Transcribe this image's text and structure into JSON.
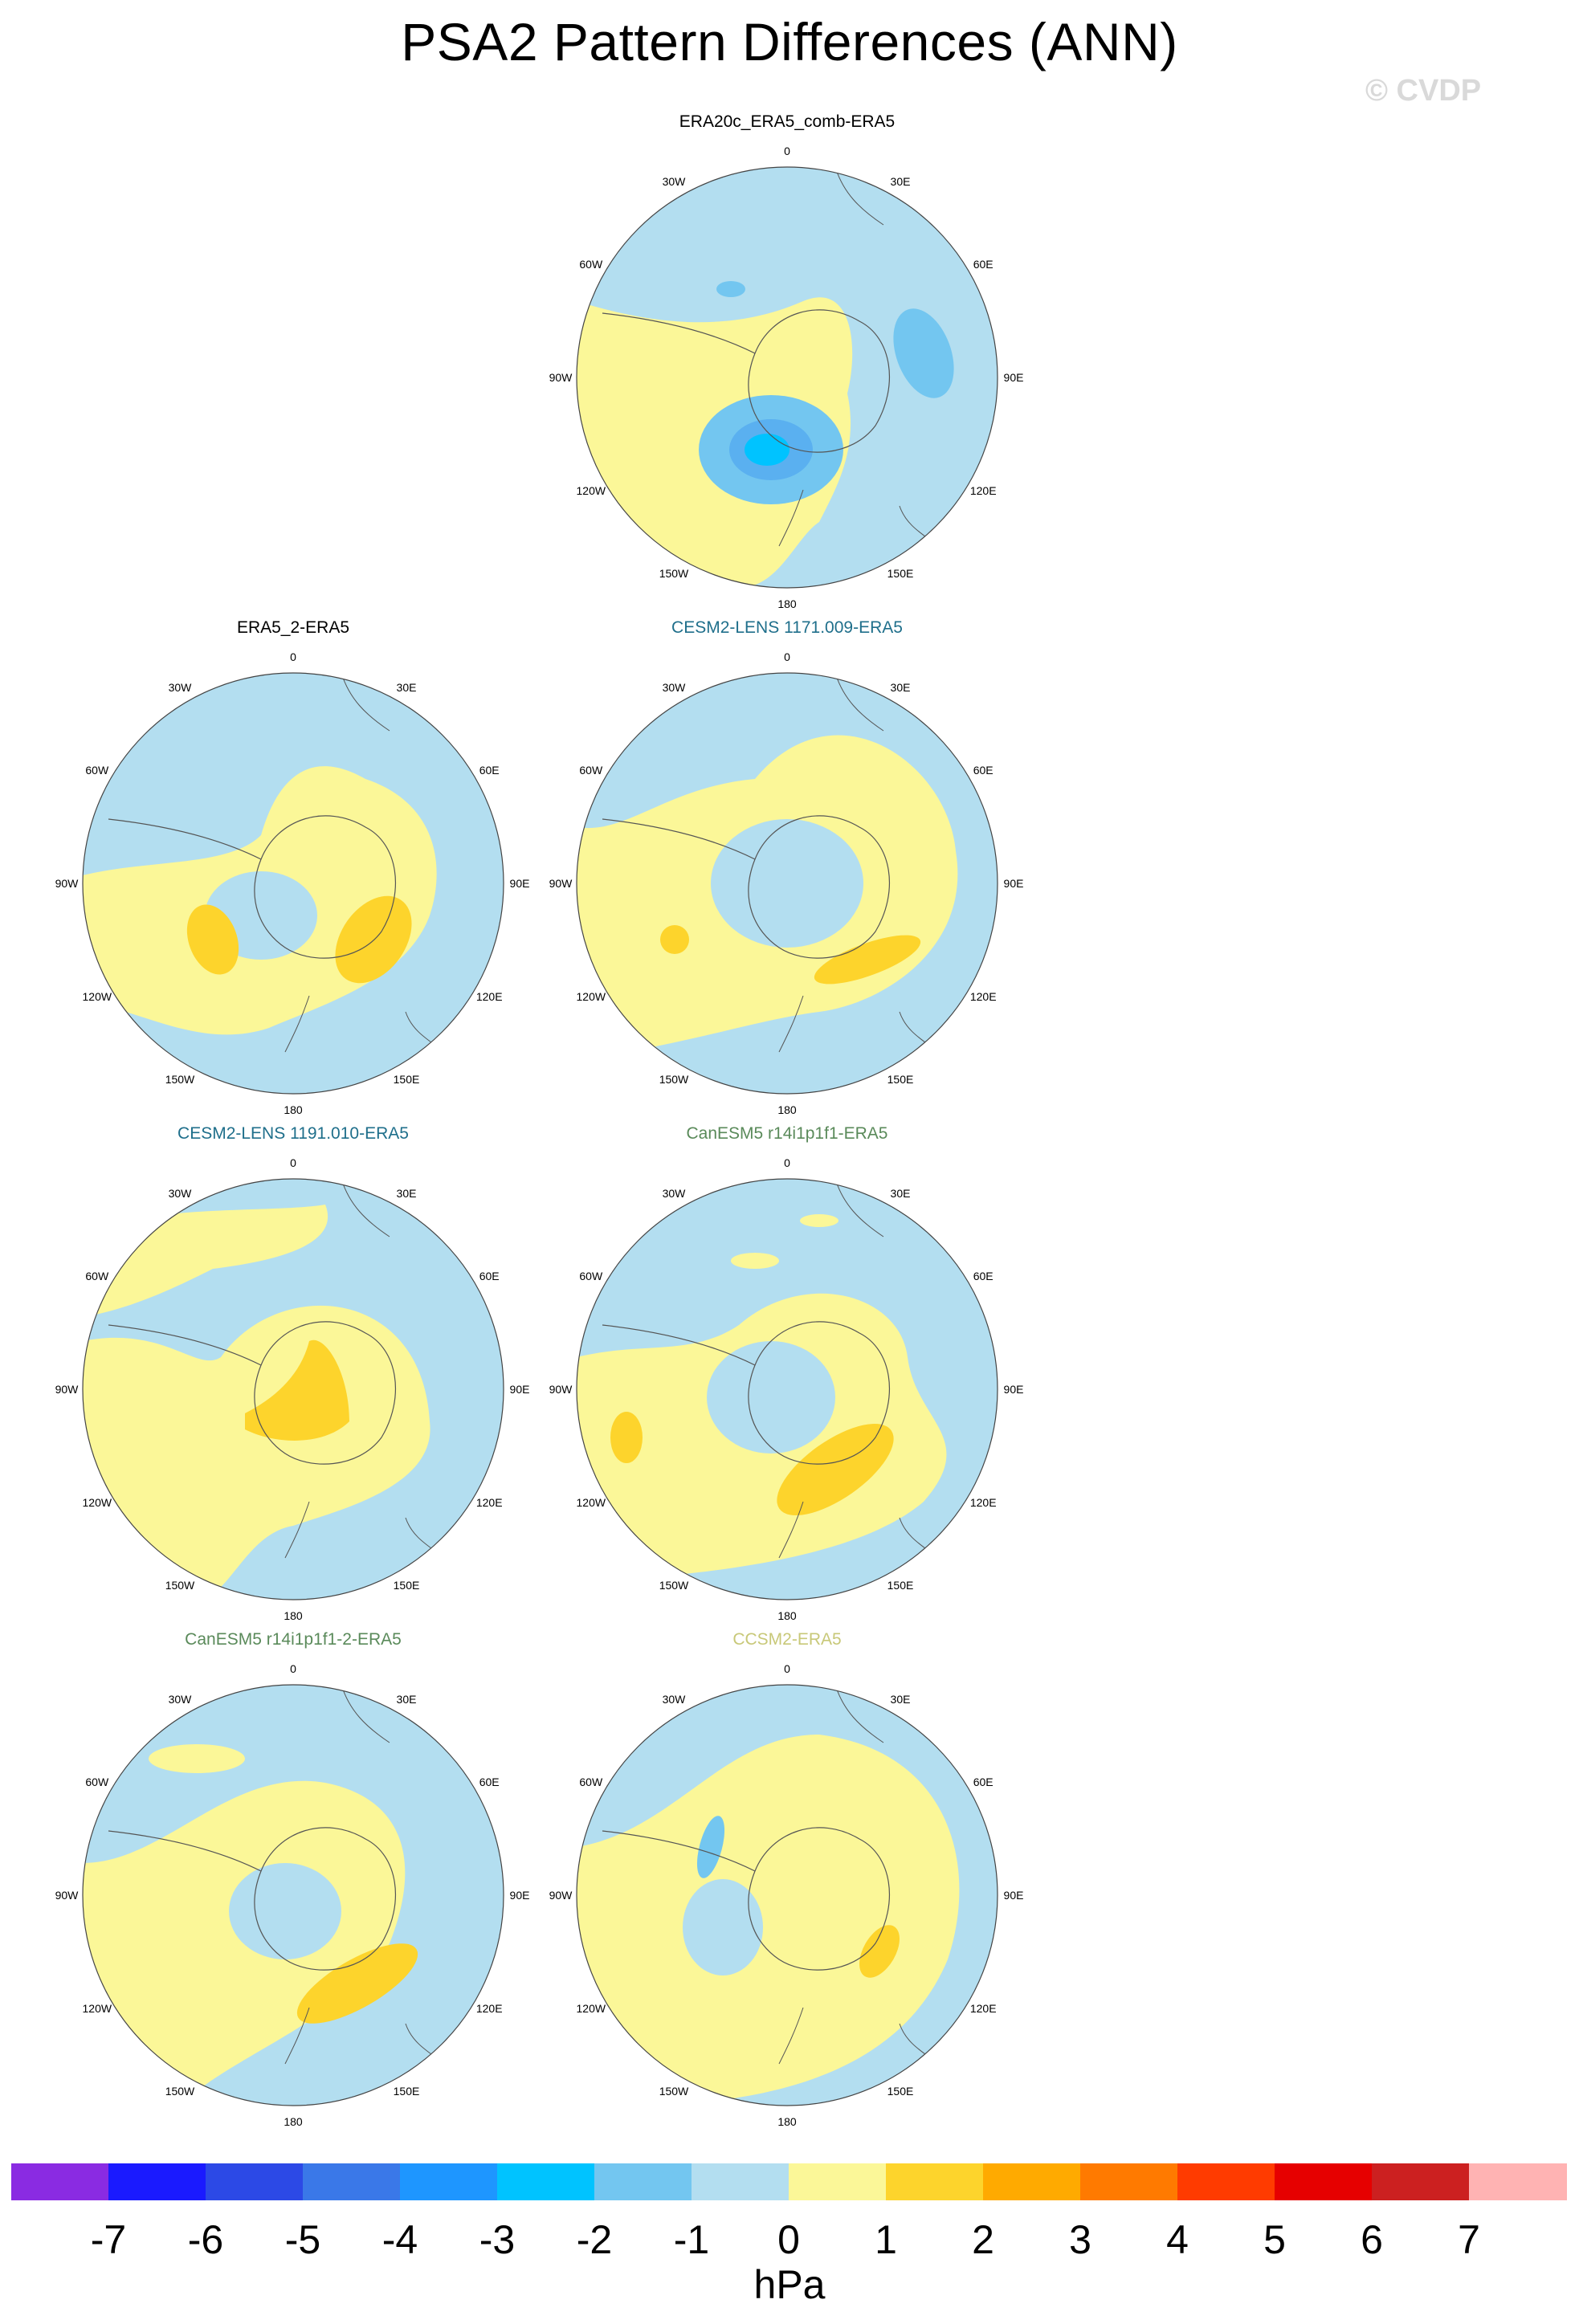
{
  "title": "PSA2 Pattern Differences (ANN)",
  "watermark": "© CVDP",
  "lon_labels": [
    "0",
    "30E",
    "60E",
    "90E",
    "120E",
    "150E",
    "180",
    "150W",
    "120W",
    "90W",
    "60W",
    "30W"
  ],
  "panels": [
    {
      "title": "ERA20c_ERA5_comb-ERA5",
      "title_color": "#000000"
    },
    {
      "title": "ERA5_2-ERA5",
      "title_color": "#000000"
    },
    {
      "title": "CESM2-LENS 1171.009-ERA5",
      "title_color": "#1f6f8b"
    },
    {
      "title": "CESM2-LENS 1191.010-ERA5",
      "title_color": "#1f6f8b"
    },
    {
      "title": "CanESM5 r14i1p1f1-ERA5",
      "title_color": "#5a8a5a"
    },
    {
      "title": "CanESM5 r14i1p1f1-2-ERA5",
      "title_color": "#5a8a5a"
    },
    {
      "title": "CCSM2-ERA5",
      "title_color": "#c8c878"
    }
  ],
  "colorbar": {
    "unit": "hPa",
    "ticks": [
      "-7",
      "-6",
      "-5",
      "-4",
      "-3",
      "-2",
      "-1",
      "0",
      "1",
      "2",
      "3",
      "4",
      "5",
      "6",
      "7"
    ],
    "colors": [
      "#8a2be2",
      "#1a1aff",
      "#2c49e6",
      "#3a78e8",
      "#1e96ff",
      "#00c3ff",
      "#73c6f0",
      "#b3def0",
      "#fbf798",
      "#fdd42c",
      "#ffaa00",
      "#ff7a00",
      "#ff3b00",
      "#e60000",
      "#cc2020",
      "#ffb3b3"
    ]
  }
}
